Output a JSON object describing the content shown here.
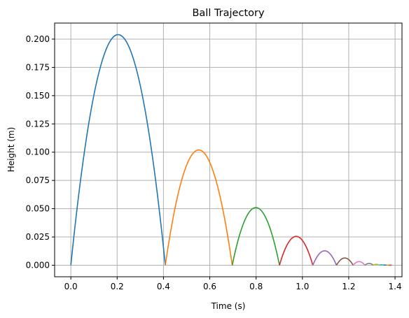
{
  "chart_data": {
    "type": "line",
    "title": "Ball Trajectory",
    "xlabel": "Time (s)",
    "ylabel": "Height (m)",
    "xlim": [
      -0.07,
      1.43
    ],
    "ylim": [
      -0.0102,
      0.2142
    ],
    "grid": true,
    "xticks": [
      0.0,
      0.2,
      0.4,
      0.6,
      0.8,
      1.0,
      1.2,
      1.4
    ],
    "xtick_labels": [
      "0.0",
      "0.2",
      "0.4",
      "0.6",
      "0.8",
      "1.0",
      "1.2",
      "1.4"
    ],
    "yticks": [
      0.0,
      0.025,
      0.05,
      0.075,
      0.1,
      0.125,
      0.15,
      0.175,
      0.2
    ],
    "ytick_labels": [
      "0.000",
      "0.025",
      "0.050",
      "0.075",
      "0.100",
      "0.125",
      "0.150",
      "0.175",
      "0.200"
    ],
    "bounces": [
      {
        "t_start": 0.0,
        "t_end": 0.408,
        "peak": 0.204,
        "color": "#1f77b4"
      },
      {
        "t_start": 0.408,
        "t_end": 0.697,
        "peak": 0.102,
        "color": "#ff7f0e"
      },
      {
        "t_start": 0.697,
        "t_end": 0.901,
        "peak": 0.051,
        "color": "#2ca02c"
      },
      {
        "t_start": 0.901,
        "t_end": 1.045,
        "peak": 0.0255,
        "color": "#d62728"
      },
      {
        "t_start": 1.045,
        "t_end": 1.147,
        "peak": 0.01275,
        "color": "#9467bd"
      },
      {
        "t_start": 1.147,
        "t_end": 1.219,
        "peak": 0.0064,
        "color": "#8c564b"
      },
      {
        "t_start": 1.219,
        "t_end": 1.27,
        "peak": 0.0032,
        "color": "#e377c2"
      },
      {
        "t_start": 1.27,
        "t_end": 1.306,
        "peak": 0.0016,
        "color": "#7f7f7f"
      },
      {
        "t_start": 1.306,
        "t_end": 1.332,
        "peak": 0.0008,
        "color": "#bcbd22"
      },
      {
        "t_start": 1.332,
        "t_end": 1.35,
        "peak": 0.0004,
        "color": "#17becf"
      },
      {
        "t_start": 1.35,
        "t_end": 1.363,
        "peak": 0.0002,
        "color": "#1f77b4"
      },
      {
        "t_start": 1.363,
        "t_end": 1.372,
        "peak": 0.0001,
        "color": "#ff7f0e"
      },
      {
        "t_start": 1.372,
        "t_end": 1.378,
        "peak": 5e-05,
        "color": "#2ca02c"
      },
      {
        "t_start": 1.378,
        "t_end": 1.383,
        "peak": 2.5e-05,
        "color": "#d62728"
      },
      {
        "t_start": 1.383,
        "t_end": 1.386,
        "peak": 1.25e-05,
        "color": "#9467bd"
      }
    ]
  }
}
